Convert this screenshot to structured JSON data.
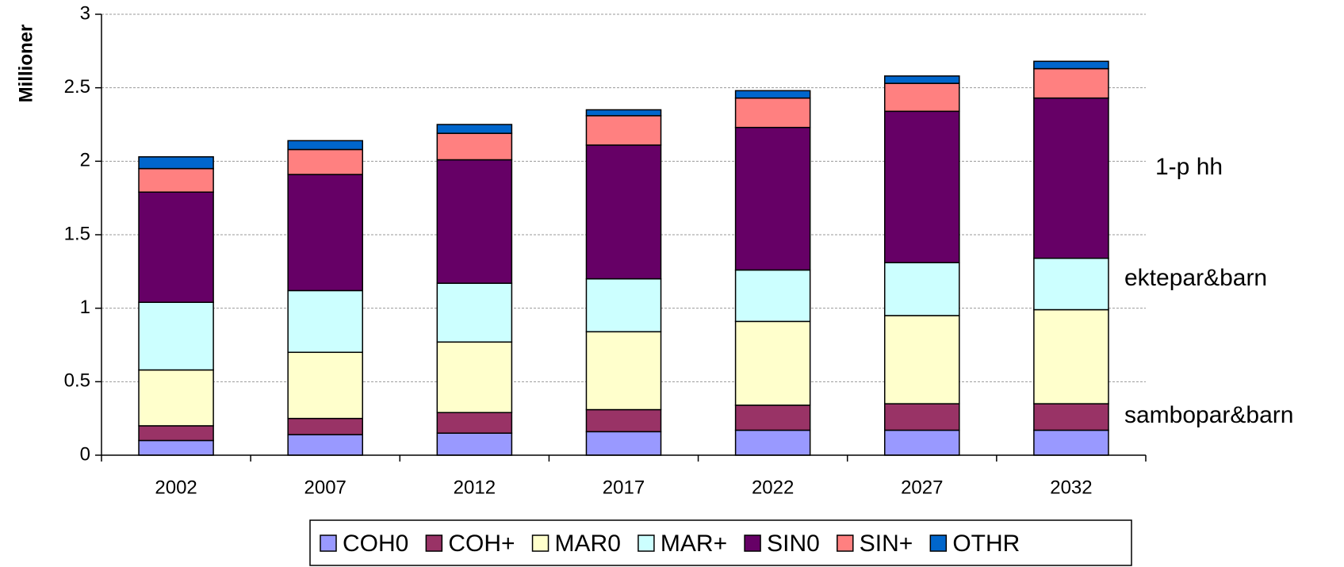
{
  "chart_data": {
    "type": "stacked_bar",
    "y_label": "Millioner",
    "categories": [
      "2002",
      "2007",
      "2012",
      "2017",
      "2022",
      "2027",
      "2032"
    ],
    "series": [
      {
        "name": "COH0",
        "color": "#9999ff",
        "values": [
          0.1,
          0.14,
          0.15,
          0.16,
          0.17,
          0.17,
          0.17
        ]
      },
      {
        "name": "COH+",
        "color": "#993366",
        "values": [
          0.1,
          0.11,
          0.14,
          0.15,
          0.17,
          0.18,
          0.18
        ]
      },
      {
        "name": "MAR0",
        "color": "#ffffcc",
        "values": [
          0.38,
          0.45,
          0.48,
          0.53,
          0.57,
          0.6,
          0.64
        ]
      },
      {
        "name": "MAR+",
        "color": "#ccffff",
        "values": [
          0.46,
          0.42,
          0.4,
          0.36,
          0.35,
          0.36,
          0.35
        ]
      },
      {
        "name": "SIN0",
        "color": "#660066",
        "values": [
          0.75,
          0.79,
          0.84,
          0.91,
          0.97,
          1.03,
          1.09
        ]
      },
      {
        "name": "SIN+",
        "color": "#ff8080",
        "values": [
          0.16,
          0.17,
          0.18,
          0.2,
          0.2,
          0.19,
          0.2
        ]
      },
      {
        "name": "OTHR",
        "color": "#0066cc",
        "values": [
          0.08,
          0.06,
          0.06,
          0.04,
          0.05,
          0.05,
          0.05
        ]
      }
    ],
    "ylim": [
      0,
      3
    ],
    "yticks": [
      0,
      0.5,
      1,
      1.5,
      2,
      2.5,
      3
    ],
    "grid": true,
    "annotations": [
      "1-p hh",
      "ektepar&barn",
      "sambopar&barn"
    ]
  }
}
